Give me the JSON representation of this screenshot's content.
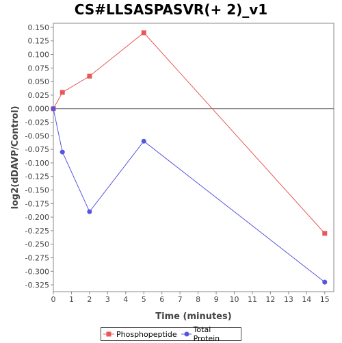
{
  "chart_data": {
    "type": "line",
    "title": "CS#LLSASPASVR(+ 2)_v1",
    "xlabel": "Time (minutes)",
    "ylabel": "log2(dDAVP/Control)",
    "xlim": [
      0,
      15.5
    ],
    "ylim": [
      -0.3375,
      0.1575
    ],
    "x_ticks": [
      0,
      1,
      2,
      3,
      4,
      5,
      6,
      7,
      8,
      9,
      10,
      11,
      12,
      13,
      14,
      15
    ],
    "y_ticks": [
      0.15,
      0.125,
      0.1,
      0.075,
      0.05,
      0.025,
      0.0,
      -0.025,
      -0.05,
      -0.075,
      -0.1,
      -0.125,
      -0.15,
      -0.175,
      -0.2,
      -0.225,
      -0.25,
      -0.275,
      -0.3,
      -0.325
    ],
    "y_tick_labels": [
      "0.150",
      "0.125",
      "0.100",
      "0.075",
      "0.050",
      "0.025",
      "0.000",
      "-0.025",
      "-0.050",
      "-0.075",
      "-0.100",
      "-0.125",
      "-0.150",
      "-0.175",
      "-0.200",
      "-0.225",
      "-0.250",
      "-0.275",
      "-0.300",
      "-0.325"
    ],
    "zero_line": true,
    "grid": false,
    "legend_position": "bottom",
    "series": [
      {
        "name": "Phosphopeptide",
        "color": "#e85858",
        "marker": "square",
        "x": [
          0,
          0.5,
          2,
          5,
          15
        ],
        "y": [
          0.0,
          0.03,
          0.06,
          0.14,
          -0.23
        ]
      },
      {
        "name": "Total Protein",
        "color": "#5555e0",
        "marker": "circle",
        "x": [
          0,
          0.5,
          2,
          5,
          15
        ],
        "y": [
          0.0,
          -0.08,
          -0.19,
          -0.06,
          -0.32
        ]
      }
    ]
  }
}
